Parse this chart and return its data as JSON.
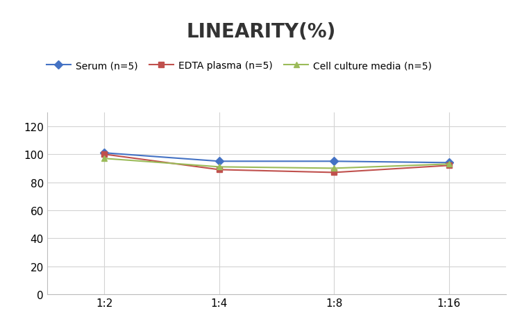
{
  "title": "LINEARITY(%)",
  "x_labels": [
    "1:2",
    "1:4",
    "1:8",
    "1:16"
  ],
  "x_positions": [
    0,
    1,
    2,
    3
  ],
  "series": [
    {
      "name": "Serum (n=5)",
      "values": [
        101,
        95,
        95,
        94
      ],
      "color": "#4472C4",
      "marker": "D",
      "marker_size": 6,
      "linewidth": 1.5
    },
    {
      "name": "EDTA plasma (n=5)",
      "values": [
        100,
        89,
        87,
        92
      ],
      "color": "#C0504D",
      "marker": "s",
      "marker_size": 6,
      "linewidth": 1.5
    },
    {
      "name": "Cell culture media (n=5)",
      "values": [
        97,
        91,
        90,
        93
      ],
      "color": "#9BBB59",
      "marker": "^",
      "marker_size": 6,
      "linewidth": 1.5
    }
  ],
  "ylim": [
    0,
    130
  ],
  "yticks": [
    0,
    20,
    40,
    60,
    80,
    100,
    120
  ],
  "background_color": "#ffffff",
  "grid_color": "#d3d3d3",
  "title_fontsize": 20,
  "legend_fontsize": 10,
  "tick_fontsize": 11
}
